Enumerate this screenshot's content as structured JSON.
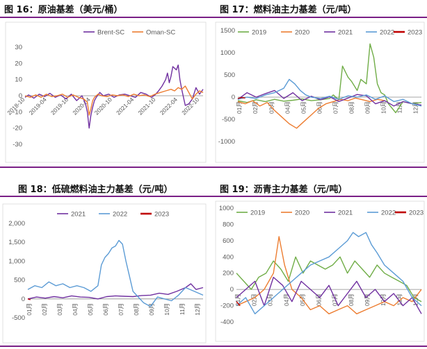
{
  "titles": {
    "p16": "图 16：原油基差（美元/桶）",
    "p17": "图 17：燃料油主力基差（元/吨）",
    "p18": "图 18：低硫燃料油主力基差（元/吨）",
    "p19": "图 19：沥青主力基差（元/吨）"
  },
  "colors": {
    "rule": "#7a1f86",
    "Brent-SC": "#7030a0",
    "Oman-SC": "#ed7d31",
    "2019": "#70ad47",
    "2020": "#ed7d31",
    "2021": "#7030a0",
    "2022": "#5b9bd5",
    "2023": "#c00000"
  },
  "chart_data": [
    {
      "id": "p16",
      "type": "line",
      "ylim": [
        -30,
        30
      ],
      "yticks": [
        "30",
        "20",
        "10",
        "0",
        "-10",
        "-20",
        "-30"
      ],
      "xticks": [
        "2018-10",
        "2019-04",
        "2019-10",
        "2020-04",
        "2020-10",
        "2021-04",
        "2021-10",
        "2022-04",
        "2022-10"
      ],
      "legend": [
        "Brent-SC",
        "Oman-SC"
      ],
      "legend_position": "top",
      "series": [
        {
          "name": "Brent-SC",
          "x": [
            0,
            0.02,
            0.05,
            0.08,
            0.11,
            0.14,
            0.17,
            0.2,
            0.23,
            0.26,
            0.29,
            0.32,
            0.34,
            0.35,
            0.36,
            0.37,
            0.38,
            0.39,
            0.4,
            0.42,
            0.44,
            0.47,
            0.5,
            0.53,
            0.56,
            0.59,
            0.62,
            0.65,
            0.68,
            0.71,
            0.73,
            0.75,
            0.77,
            0.79,
            0.8,
            0.81,
            0.82,
            0.83,
            0.85,
            0.86,
            0.87,
            0.88,
            0.9,
            0.92,
            0.94,
            0.96,
            0.98,
            1.0
          ],
          "y": [
            -1,
            0.5,
            -1.5,
            1,
            -0.5,
            1.5,
            -1,
            0.5,
            -2,
            1,
            -3,
            0,
            -5,
            -10,
            -20,
            -12,
            -7,
            -3,
            -1,
            2,
            0,
            1,
            -1,
            0.5,
            1,
            0,
            -1,
            2,
            1,
            -1,
            0.5,
            3,
            6,
            10,
            14,
            8,
            12,
            18,
            16,
            19,
            10,
            4,
            -6,
            -5,
            -2,
            5,
            1,
            4
          ]
        },
        {
          "name": "Oman-SC",
          "x": [
            0,
            0.03,
            0.06,
            0.09,
            0.12,
            0.15,
            0.18,
            0.21,
            0.24,
            0.27,
            0.3,
            0.33,
            0.35,
            0.36,
            0.37,
            0.38,
            0.39,
            0.41,
            0.43,
            0.46,
            0.49,
            0.52,
            0.55,
            0.58,
            0.61,
            0.64,
            0.67,
            0.7,
            0.73,
            0.76,
            0.79,
            0.82,
            0.84,
            0.86,
            0.88,
            0.9,
            0.92,
            0.94,
            0.96,
            0.98,
            1.0
          ],
          "y": [
            0,
            -1,
            0.5,
            -1,
            1,
            -0.5,
            0,
            1,
            -1,
            0.5,
            -1,
            -2,
            -4,
            -12,
            -8,
            -3,
            -1,
            1,
            0,
            -0.5,
            0.5,
            0,
            0.5,
            -0.5,
            1,
            0,
            0.5,
            -0.5,
            1,
            2,
            3,
            4,
            3,
            5,
            4,
            6,
            2,
            -2,
            1,
            3,
            2
          ]
        }
      ]
    },
    {
      "id": "p17",
      "type": "line",
      "ylim": [
        -1000,
        1500
      ],
      "yticks": [
        "1500",
        "1000",
        "500",
        "0",
        "-500",
        "-1000"
      ],
      "xticks": [
        "01月",
        "02月",
        "03月",
        "04月",
        "05月",
        "06月",
        "07月",
        "08月",
        "09月",
        "10月",
        "11月",
        "12月"
      ],
      "legend": [
        "2019",
        "2020",
        "2021",
        "2022",
        "2023"
      ],
      "legend_position": "top",
      "series": [
        {
          "name": "2019",
          "x": [
            0,
            0.05,
            0.1,
            0.15,
            0.2,
            0.25,
            0.3,
            0.35,
            0.4,
            0.45,
            0.5,
            0.52,
            0.55,
            0.57,
            0.6,
            0.62,
            0.65,
            0.67,
            0.7,
            0.72,
            0.74,
            0.76,
            0.78,
            0.8,
            0.82,
            0.84,
            0.86,
            0.9,
            0.95,
            1.0
          ],
          "y": [
            -80,
            -120,
            -60,
            -100,
            -50,
            -90,
            -70,
            -40,
            -80,
            -60,
            -30,
            50,
            -60,
            700,
            450,
            350,
            150,
            400,
            300,
            1200,
            900,
            300,
            100,
            50,
            -150,
            -250,
            -350,
            -100,
            -150,
            -120
          ]
        },
        {
          "name": "2020",
          "x": [
            0,
            0.04,
            0.08,
            0.12,
            0.16,
            0.2,
            0.24,
            0.28,
            0.32,
            0.36,
            0.4,
            0.44,
            0.48,
            0.52,
            0.56,
            0.6,
            0.64,
            0.68,
            0.72,
            0.76,
            0.8
          ],
          "y": [
            -100,
            -150,
            -80,
            -200,
            -120,
            -300,
            -450,
            -600,
            -700,
            -550,
            -400,
            -250,
            -150,
            -100,
            -50,
            -80,
            -20,
            -60,
            -100,
            -50,
            -80
          ]
        },
        {
          "name": "2021",
          "x": [
            0,
            0.05,
            0.1,
            0.15,
            0.2,
            0.25,
            0.3,
            0.35,
            0.4,
            0.45,
            0.5,
            0.55,
            0.6,
            0.65,
            0.7,
            0.75,
            0.8,
            0.85,
            0.9,
            0.95,
            1.0
          ],
          "y": [
            -50,
            100,
            0,
            80,
            150,
            -30,
            100,
            -80,
            20,
            -60,
            10,
            -100,
            -20,
            60,
            30,
            -150,
            -80,
            -200,
            -100,
            -150,
            -180
          ]
        },
        {
          "name": "2022",
          "x": [
            0,
            0.05,
            0.1,
            0.15,
            0.2,
            0.25,
            0.28,
            0.31,
            0.34,
            0.37,
            0.4,
            0.45,
            0.5,
            0.55,
            0.6,
            0.65,
            0.7,
            0.75,
            0.8,
            0.85,
            0.9,
            0.95,
            1.0
          ],
          "y": [
            -50,
            0,
            -30,
            50,
            100,
            200,
            400,
            300,
            150,
            50,
            0,
            -30,
            20,
            -50,
            30,
            0,
            50,
            -50,
            30,
            -100,
            -50,
            -150,
            -200
          ]
        },
        {
          "name": "2023",
          "x": [
            0,
            0.02,
            0.04
          ],
          "y": [
            -30,
            -10,
            -20
          ]
        }
      ]
    },
    {
      "id": "p18",
      "type": "line",
      "ylim": [
        -500,
        2000
      ],
      "yticks": [
        "2,000",
        "1,500",
        "1,000",
        "500",
        "0",
        "-500"
      ],
      "xticks": [
        "01月",
        "02月",
        "03月",
        "04月",
        "05月",
        "06月",
        "07月",
        "08月",
        "09月",
        "10月",
        "11月",
        "12月"
      ],
      "legend": [
        "2021",
        "2022",
        "2023"
      ],
      "legend_position": "top",
      "series": [
        {
          "name": "2021",
          "x": [
            0,
            0.05,
            0.1,
            0.15,
            0.2,
            0.25,
            0.3,
            0.35,
            0.4,
            0.45,
            0.5,
            0.55,
            0.6,
            0.65,
            0.7,
            0.75,
            0.8,
            0.85,
            0.9,
            0.93,
            0.96,
            1.0
          ],
          "y": [
            0,
            50,
            20,
            60,
            30,
            80,
            50,
            40,
            0,
            60,
            80,
            70,
            60,
            90,
            100,
            150,
            120,
            200,
            300,
            400,
            250,
            300
          ]
        },
        {
          "name": "2022",
          "x": [
            0,
            0.04,
            0.08,
            0.12,
            0.16,
            0.2,
            0.24,
            0.28,
            0.32,
            0.36,
            0.4,
            0.42,
            0.44,
            0.46,
            0.48,
            0.5,
            0.52,
            0.54,
            0.56,
            0.58,
            0.6,
            0.63,
            0.66,
            0.7,
            0.74,
            0.78,
            0.82,
            0.86,
            0.9,
            0.95,
            1.0
          ],
          "y": [
            250,
            350,
            300,
            450,
            350,
            400,
            300,
            350,
            300,
            200,
            350,
            900,
            1100,
            1200,
            1350,
            1400,
            1550,
            1450,
            1000,
            600,
            200,
            50,
            -100,
            -200,
            50,
            0,
            -50,
            100,
            300,
            200,
            100
          ]
        },
        {
          "name": "2023",
          "x": [
            0,
            0.015
          ],
          "y": [
            0,
            -20
          ]
        }
      ]
    },
    {
      "id": "p19",
      "type": "line",
      "ylim": [
        -400,
        1000
      ],
      "yticks": [
        "1000",
        "800",
        "600",
        "400",
        "200",
        "0",
        "-200",
        "-400"
      ],
      "xticks": [
        "01月",
        "02月",
        "03月",
        "04月",
        "05月",
        "06月",
        "07月",
        "08月",
        "09月",
        "10月",
        "11月",
        "12月"
      ],
      "legend": [
        "2019",
        "2020",
        "2021",
        "2022",
        "2023"
      ],
      "legend_position": "top",
      "series": [
        {
          "name": "2019",
          "x": [
            0,
            0.04,
            0.08,
            0.12,
            0.16,
            0.2,
            0.24,
            0.28,
            0.32,
            0.36,
            0.4,
            0.44,
            0.48,
            0.52,
            0.56,
            0.6,
            0.64,
            0.68,
            0.72,
            0.76,
            0.8,
            0.84,
            0.88,
            0.92,
            0.96,
            1.0
          ],
          "y": [
            200,
            100,
            0,
            150,
            200,
            350,
            250,
            100,
            400,
            200,
            350,
            300,
            250,
            300,
            400,
            200,
            350,
            250,
            150,
            300,
            200,
            150,
            100,
            50,
            -100,
            -150
          ]
        },
        {
          "name": "2020",
          "x": [
            0,
            0.05,
            0.1,
            0.15,
            0.2,
            0.23,
            0.26,
            0.3,
            0.35,
            0.4,
            0.45,
            0.5,
            0.55,
            0.6,
            0.65,
            0.7,
            0.75,
            0.8,
            0.85,
            0.9,
            0.95,
            1.0
          ],
          "y": [
            -200,
            -150,
            -100,
            0,
            200,
            650,
            300,
            0,
            -100,
            -250,
            -200,
            -300,
            -250,
            -200,
            -300,
            -250,
            -200,
            -150,
            -200,
            -100,
            -150,
            0
          ]
        },
        {
          "name": "2021",
          "x": [
            0,
            0.05,
            0.1,
            0.15,
            0.2,
            0.25,
            0.3,
            0.35,
            0.4,
            0.45,
            0.5,
            0.55,
            0.6,
            0.65,
            0.7,
            0.75,
            0.8,
            0.85,
            0.9,
            0.95,
            1.0
          ],
          "y": [
            -100,
            0,
            100,
            -200,
            150,
            50,
            -150,
            100,
            0,
            -100,
            50,
            -200,
            -50,
            100,
            -100,
            0,
            -150,
            -50,
            -200,
            -100,
            -300
          ]
        },
        {
          "name": "2022",
          "x": [
            0,
            0.05,
            0.1,
            0.15,
            0.2,
            0.25,
            0.3,
            0.35,
            0.4,
            0.45,
            0.5,
            0.55,
            0.6,
            0.63,
            0.66,
            0.7,
            0.73,
            0.76,
            0.8,
            0.85,
            0.9,
            0.95,
            1.0
          ],
          "y": [
            -200,
            -100,
            -300,
            -200,
            -100,
            0,
            100,
            200,
            300,
            350,
            400,
            500,
            600,
            700,
            650,
            700,
            550,
            450,
            300,
            200,
            100,
            -100,
            -200
          ]
        },
        {
          "name": "2023",
          "x": [
            0,
            0.02
          ],
          "y": [
            -150,
            -200
          ]
        }
      ]
    }
  ]
}
